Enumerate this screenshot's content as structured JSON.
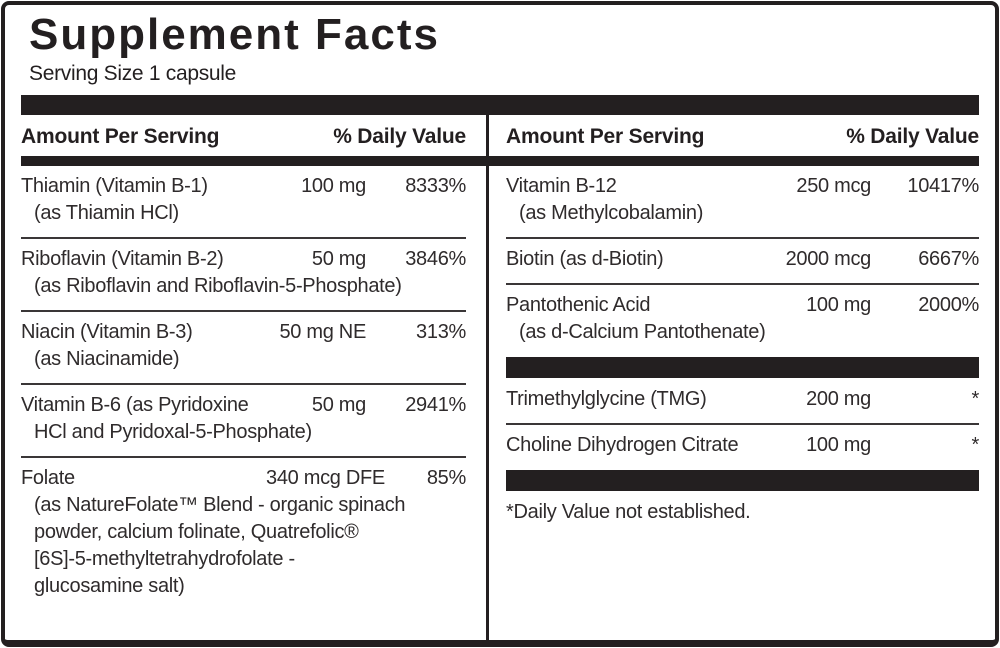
{
  "title": "Supplement Facts",
  "serving_size": "Serving Size 1 capsule",
  "colors": {
    "ink": "#231f20",
    "background": "#ffffff"
  },
  "columns": {
    "left": {
      "header": {
        "amount_per_serving": "Amount Per Serving",
        "daily_value": "% Daily Value"
      },
      "rows": [
        {
          "name": "Thiamin (Vitamin B-1)",
          "amount": "100 mg",
          "dv": "8333%",
          "sub": [
            "(as Thiamin HCl)"
          ]
        },
        {
          "name": "Riboflavin (Vitamin B-2)",
          "amount": "50 mg",
          "dv": "3846%",
          "sub": [
            "(as Riboflavin and Riboflavin-5-Phosphate)"
          ]
        },
        {
          "name": "Niacin (Vitamin B-3)",
          "amount": "50 mg NE",
          "dv": "313%",
          "sub": [
            "(as Niacinamide)"
          ]
        },
        {
          "name": "Vitamin B-6 (as Pyridoxine",
          "amount": "50 mg",
          "dv": "2941%",
          "sub": [
            "HCl and Pyridoxal-5-Phosphate)"
          ]
        },
        {
          "name": "Folate",
          "amount": "340 mcg DFE",
          "dv": "85%",
          "sub": [
            "(as NatureFolate™ Blend - organic spinach",
            "powder, calcium folinate, Quatrefolic®",
            "[6S]-5-methyltetrahydrofolate -",
            "glucosamine salt)"
          ]
        }
      ]
    },
    "right": {
      "header": {
        "amount_per_serving": "Amount Per Serving",
        "daily_value": "% Daily Value"
      },
      "rows": [
        {
          "name": "Vitamin B-12",
          "amount": "250 mcg",
          "dv": "10417%",
          "sub": [
            "(as Methylcobalamin)"
          ]
        },
        {
          "name": "Biotin (as d-Biotin)",
          "amount": "2000 mcg",
          "dv": "6667%",
          "sub": []
        },
        {
          "name": "Pantothenic Acid",
          "amount": "100 mg",
          "dv": "2000%",
          "sub": [
            "(as d-Calcium Pantothenate)"
          ]
        },
        {
          "name": "Trimethylglycine (TMG)",
          "amount": "200 mg",
          "dv": "*",
          "sub": []
        },
        {
          "name": "Choline Dihydrogen Citrate",
          "amount": "100 mg",
          "dv": "*",
          "sub": []
        }
      ],
      "footnote": "*Daily Value not established."
    }
  }
}
